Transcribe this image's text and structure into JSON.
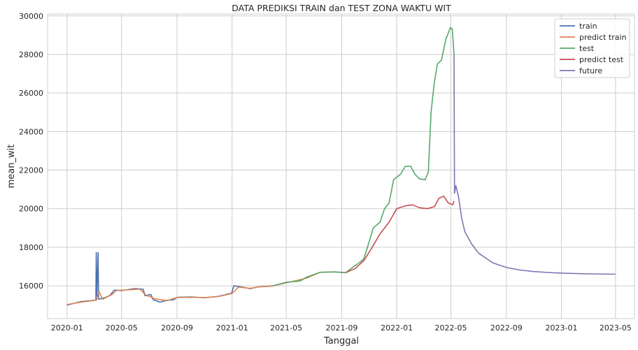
{
  "chart_data": {
    "type": "line",
    "title": "DATA PREDIKSI TRAIN dan TEST ZONA WAKTU WIT",
    "xlabel": "Tanggal",
    "ylabel": "mean_wit",
    "xlim": [
      "2019-11-19",
      "2023-06-12"
    ],
    "ylim": [
      14300,
      30100
    ],
    "grid": true,
    "legend_position": "top-right",
    "x_ticks": [
      {
        "date": "2020-01-01",
        "label": "2020-01"
      },
      {
        "date": "2020-05-01",
        "label": "2020-05"
      },
      {
        "date": "2020-09-01",
        "label": "2020-09"
      },
      {
        "date": "2021-01-01",
        "label": "2021-01"
      },
      {
        "date": "2021-05-01",
        "label": "2021-05"
      },
      {
        "date": "2021-09-01",
        "label": "2021-09"
      },
      {
        "date": "2022-01-01",
        "label": "2022-01"
      },
      {
        "date": "2022-05-01",
        "label": "2022-05"
      },
      {
        "date": "2022-09-01",
        "label": "2022-09"
      },
      {
        "date": "2023-01-01",
        "label": "2023-01"
      },
      {
        "date": "2023-05-01",
        "label": "2023-05"
      }
    ],
    "y_ticks": [
      16000,
      18000,
      20000,
      22000,
      24000,
      26000,
      28000,
      30000
    ],
    "series": [
      {
        "name": "train",
        "color": "#4c72b0",
        "points": [
          [
            "2020-01-01",
            15000
          ],
          [
            "2020-01-15",
            15080
          ],
          [
            "2020-02-01",
            15180
          ],
          [
            "2020-02-20",
            15220
          ],
          [
            "2020-03-05",
            15260
          ],
          [
            "2020-03-06",
            17720
          ],
          [
            "2020-03-07",
            15280
          ],
          [
            "2020-03-10",
            17720
          ],
          [
            "2020-03-11",
            15300
          ],
          [
            "2020-03-25",
            15380
          ],
          [
            "2020-04-05",
            15500
          ],
          [
            "2020-04-15",
            15780
          ],
          [
            "2020-05-01",
            15750
          ],
          [
            "2020-05-20",
            15820
          ],
          [
            "2020-06-01",
            15860
          ],
          [
            "2020-06-18",
            15820
          ],
          [
            "2020-06-22",
            15480
          ],
          [
            "2020-07-05",
            15550
          ],
          [
            "2020-07-10",
            15280
          ],
          [
            "2020-07-25",
            15150
          ],
          [
            "2020-08-10",
            15250
          ],
          [
            "2020-08-25",
            15280
          ],
          [
            "2020-09-01",
            15400
          ],
          [
            "2020-10-01",
            15420
          ],
          [
            "2020-11-01",
            15380
          ],
          [
            "2020-12-01",
            15450
          ],
          [
            "2020-12-31",
            15620
          ],
          [
            "2021-01-05",
            16000
          ],
          [
            "2021-01-20",
            15950
          ],
          [
            "2021-02-10",
            15850
          ],
          [
            "2021-03-01",
            15950
          ],
          [
            "2021-04-01",
            16000
          ]
        ]
      },
      {
        "name": "predict train",
        "color": "#dd8452",
        "points": [
          [
            "2020-01-01",
            15030
          ],
          [
            "2020-02-01",
            15150
          ],
          [
            "2020-03-05",
            15250
          ],
          [
            "2020-03-12",
            15700
          ],
          [
            "2020-03-20",
            15300
          ],
          [
            "2020-04-10",
            15550
          ],
          [
            "2020-04-20",
            15760
          ],
          [
            "2020-05-15",
            15790
          ],
          [
            "2020-06-10",
            15830
          ],
          [
            "2020-06-25",
            15500
          ],
          [
            "2020-07-15",
            15320
          ],
          [
            "2020-08-10",
            15230
          ],
          [
            "2020-09-01",
            15390
          ],
          [
            "2020-10-01",
            15400
          ],
          [
            "2020-11-01",
            15390
          ],
          [
            "2020-12-01",
            15440
          ],
          [
            "2021-01-01",
            15600
          ],
          [
            "2021-01-15",
            15930
          ],
          [
            "2021-02-10",
            15870
          ],
          [
            "2021-03-01",
            15940
          ],
          [
            "2021-04-01",
            15990
          ],
          [
            "2021-05-01",
            16150
          ],
          [
            "2021-06-15",
            16400
          ],
          [
            "2021-07-15",
            16700
          ],
          [
            "2021-08-15",
            16720
          ],
          [
            "2021-09-10",
            16680
          ]
        ]
      },
      {
        "name": "test",
        "color": "#55a868",
        "points": [
          [
            "2021-04-01",
            16000
          ],
          [
            "2021-05-01",
            16180
          ],
          [
            "2021-06-01",
            16250
          ],
          [
            "2021-06-15",
            16450
          ],
          [
            "2021-07-15",
            16700
          ],
          [
            "2021-08-15",
            16720
          ],
          [
            "2021-09-10",
            16680
          ],
          [
            "2021-09-25",
            16950
          ],
          [
            "2021-10-10",
            17200
          ],
          [
            "2021-10-20",
            17400
          ],
          [
            "2021-11-01",
            18300
          ],
          [
            "2021-11-10",
            19000
          ],
          [
            "2021-11-25",
            19300
          ],
          [
            "2021-12-05",
            20000
          ],
          [
            "2021-12-15",
            20300
          ],
          [
            "2021-12-25",
            21500
          ],
          [
            "2022-01-10",
            21800
          ],
          [
            "2022-01-20",
            22200
          ],
          [
            "2022-02-01",
            22200
          ],
          [
            "2022-02-10",
            21800
          ],
          [
            "2022-02-20",
            21550
          ],
          [
            "2022-03-05",
            21500
          ],
          [
            "2022-03-12",
            21900
          ],
          [
            "2022-03-18",
            25000
          ],
          [
            "2022-03-25",
            26500
          ],
          [
            "2022-04-01",
            27500
          ],
          [
            "2022-04-10",
            27700
          ],
          [
            "2022-04-20",
            28800
          ],
          [
            "2022-04-30",
            29400
          ],
          [
            "2022-05-04",
            29320
          ],
          [
            "2022-05-08",
            28000
          ]
        ]
      },
      {
        "name": "predict test",
        "color": "#c44e52",
        "points": [
          [
            "2021-09-10",
            16680
          ],
          [
            "2021-10-01",
            16900
          ],
          [
            "2021-10-20",
            17300
          ],
          [
            "2021-11-05",
            17900
          ],
          [
            "2021-11-25",
            18700
          ],
          [
            "2021-12-15",
            19300
          ],
          [
            "2022-01-01",
            20000
          ],
          [
            "2022-01-20",
            20150
          ],
          [
            "2022-02-05",
            20200
          ],
          [
            "2022-02-20",
            20050
          ],
          [
            "2022-03-10",
            20000
          ],
          [
            "2022-03-25",
            20100
          ],
          [
            "2022-04-05",
            20550
          ],
          [
            "2022-04-15",
            20650
          ],
          [
            "2022-04-25",
            20300
          ],
          [
            "2022-05-05",
            20200
          ],
          [
            "2022-05-08",
            20400
          ]
        ]
      },
      {
        "name": "future",
        "color": "#8172b3",
        "points": [
          [
            "2022-05-08",
            28000
          ],
          [
            "2022-05-09",
            20800
          ],
          [
            "2022-05-12",
            21200
          ],
          [
            "2022-05-18",
            20600
          ],
          [
            "2022-05-25",
            19500
          ],
          [
            "2022-06-01",
            18800
          ],
          [
            "2022-06-15",
            18200
          ],
          [
            "2022-07-01",
            17700
          ],
          [
            "2022-08-01",
            17200
          ],
          [
            "2022-09-01",
            16950
          ],
          [
            "2022-10-01",
            16820
          ],
          [
            "2022-11-01",
            16740
          ],
          [
            "2022-12-01",
            16690
          ],
          [
            "2023-01-01",
            16660
          ],
          [
            "2023-03-01",
            16620
          ],
          [
            "2023-05-01",
            16600
          ]
        ]
      }
    ]
  }
}
